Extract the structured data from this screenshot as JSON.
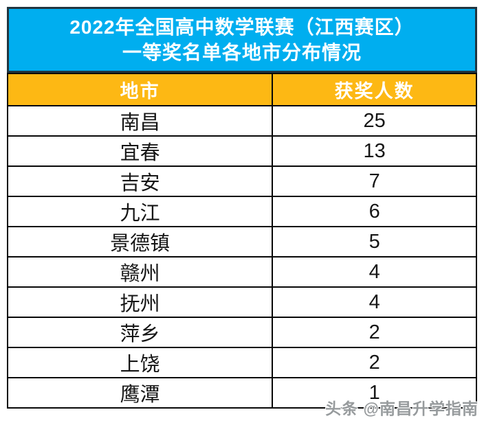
{
  "title": {
    "line1": "2022年全国高中数学联赛（江西赛区）",
    "line2": "一等奖名单各地市分布情况"
  },
  "table": {
    "headers": {
      "city": "地市",
      "count": "获奖人数"
    },
    "rows": [
      {
        "city": "南昌",
        "count": "25"
      },
      {
        "city": "宜春",
        "count": "13"
      },
      {
        "city": "吉安",
        "count": "7"
      },
      {
        "city": "九江",
        "count": "6"
      },
      {
        "city": "景德镇",
        "count": "5"
      },
      {
        "city": "赣州",
        "count": "4"
      },
      {
        "city": "抚州",
        "count": "4"
      },
      {
        "city": "萍乡",
        "count": "2"
      },
      {
        "city": "上饶",
        "count": "2"
      },
      {
        "city": "鹰潭",
        "count": "1"
      }
    ]
  },
  "watermark": "头条 @南昌升学指南",
  "colors": {
    "title_bg": "#00AEEF",
    "title_border": "#213540",
    "header_bg": "#FDB814",
    "table_border": "#070707",
    "title_text": "#FFFFFF",
    "cell_text": "#161616",
    "watermark_text": "#979B9D"
  },
  "chart_data": {
    "type": "table",
    "title": "2022年全国高中数学联赛（江西赛区）一等奖名单各地市分布情况",
    "columns": [
      "地市",
      "获奖人数"
    ],
    "categories": [
      "南昌",
      "宜春",
      "吉安",
      "九江",
      "景德镇",
      "赣州",
      "抚州",
      "萍乡",
      "上饶",
      "鹰潭"
    ],
    "values": [
      25,
      13,
      7,
      6,
      5,
      4,
      4,
      2,
      2,
      1
    ]
  }
}
